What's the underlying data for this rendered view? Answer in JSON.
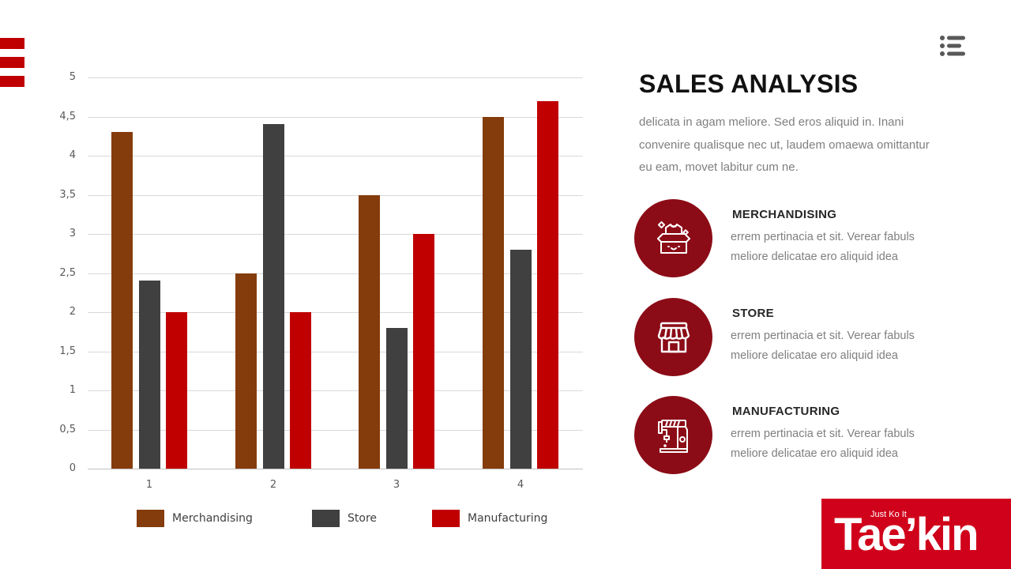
{
  "header": {
    "menu_icon": "list-menu-icon"
  },
  "content": {
    "title": "SALES ANALYSIS",
    "intro": "delicata in agam meliore. Sed eros aliquid in. Inani convenire qualisque nec ut, laudem omaewa omittantur eu eam, movet labitur cum ne.",
    "features": [
      {
        "title": "MERCHANDISING",
        "icon": "open-box-icon",
        "desc": "errem pertinacia et sit. Verear fabuls meliore delicatae ero aliquid idea"
      },
      {
        "title": "STORE",
        "icon": "storefront-icon",
        "desc": "errem pertinacia et sit. Verear fabuls meliore delicatae ero aliquid idea"
      },
      {
        "title": "MANUFACTURING",
        "icon": "sewing-machine-icon",
        "desc": "errem pertinacia et sit. Verear fabuls meliore delicatae ero aliquid idea"
      }
    ]
  },
  "brand": {
    "tagline": "Just Ko It",
    "name": "Tae’kin"
  },
  "colors": {
    "accent": "#c00000",
    "circle": "#8b0c17",
    "brand_bg": "#d0021b",
    "merchandising": "#843c0c",
    "store": "#404040",
    "manufacturing": "#c00000"
  },
  "chart_data": {
    "type": "bar",
    "title": "",
    "xlabel": "",
    "ylabel": "",
    "categories": [
      "1",
      "2",
      "3",
      "4"
    ],
    "series": [
      {
        "name": "Merchandising",
        "color": "#843c0c",
        "values": [
          4.3,
          2.5,
          3.5,
          4.5
        ]
      },
      {
        "name": "Store",
        "color": "#404040",
        "values": [
          2.4,
          4.4,
          1.8,
          2.8
        ]
      },
      {
        "name": "Manufacturing",
        "color": "#c00000",
        "values": [
          2.0,
          2.0,
          3.0,
          4.7
        ]
      }
    ],
    "ylim": [
      0,
      5
    ],
    "y_ticks": [
      "0",
      "0,5",
      "1",
      "1,5",
      "2",
      "2,5",
      "3",
      "3,5",
      "4",
      "4,5",
      "5"
    ],
    "grid": true,
    "legend_position": "bottom"
  }
}
